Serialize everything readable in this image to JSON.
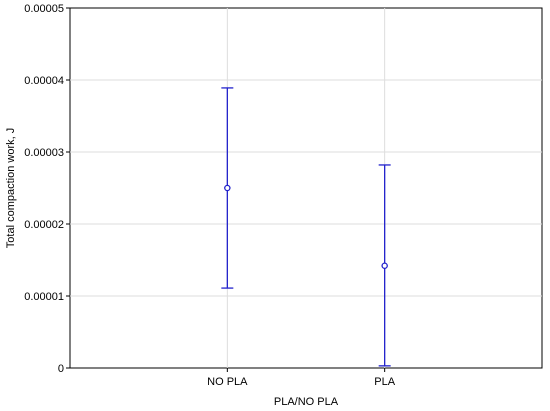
{
  "chart_data": {
    "type": "scatter",
    "subtype": "mean-with-error-bars",
    "xlabel": "PLA/NO PLA",
    "ylabel": "Total compaction work, J",
    "categories": [
      "NO PLA",
      "PLA"
    ],
    "ylim": [
      0,
      5e-05
    ],
    "yticks": [
      "0",
      "0.00001",
      "0.00002",
      "0.00003",
      "0.00004",
      "0.00005"
    ],
    "grid": true,
    "series": [
      {
        "values": [
          2.5e-05,
          1.42e-05
        ],
        "lower": [
          1.11e-05,
          3e-07
        ],
        "upper": [
          3.89e-05,
          2.82e-05
        ]
      }
    ],
    "colors": {
      "marker": "#2222cc",
      "grid": "#dddddd",
      "axis": "#000000"
    }
  }
}
